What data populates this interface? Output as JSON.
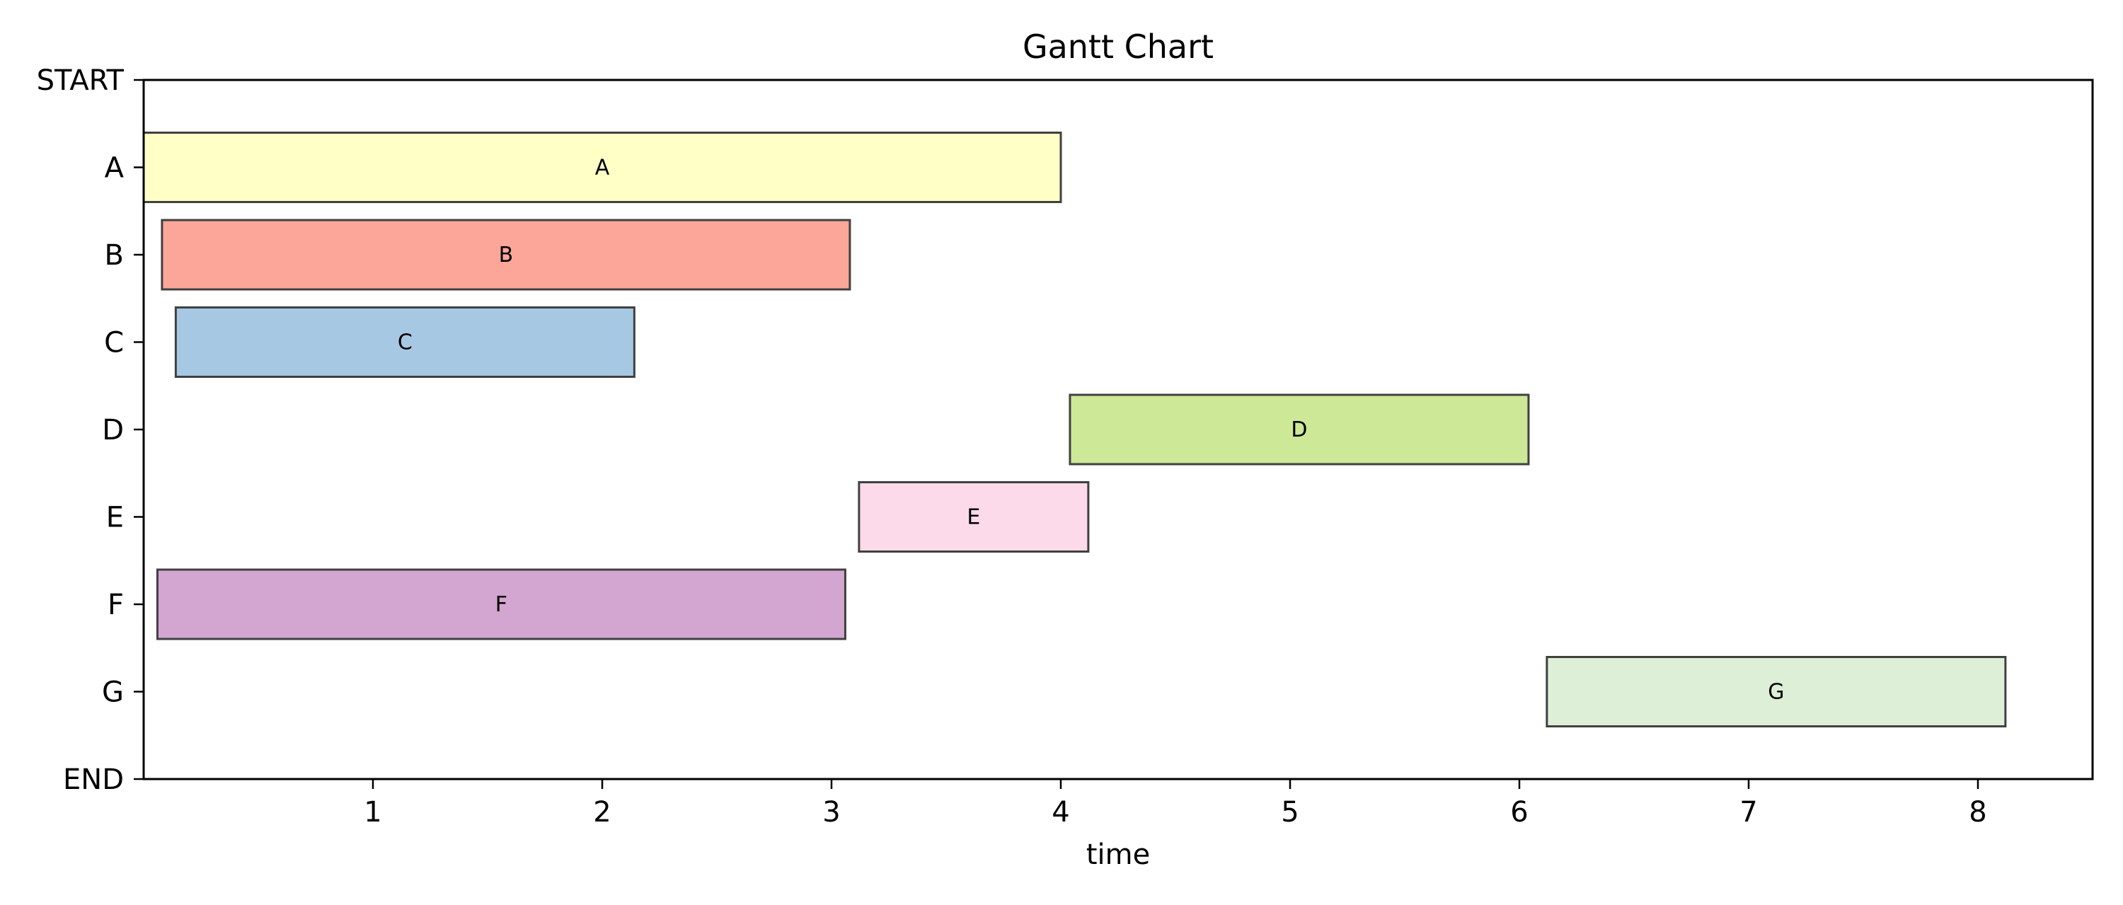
{
  "chart_data": {
    "type": "gantt",
    "title": "Gantt Chart",
    "xlabel": "time",
    "ylabel": "",
    "xlim": [
      0,
      8.5
    ],
    "x_ticks": [
      1,
      2,
      3,
      4,
      5,
      6,
      7,
      8
    ],
    "y_categories": [
      "START",
      "A",
      "B",
      "C",
      "D",
      "E",
      "F",
      "G",
      "END"
    ],
    "grid": false,
    "legend": "none",
    "tasks": [
      {
        "name": "A",
        "start": 0.0,
        "end": 4.0,
        "color": "#ffffc6"
      },
      {
        "name": "B",
        "start": 0.08,
        "end": 3.08,
        "color": "#fca69a"
      },
      {
        "name": "C",
        "start": 0.14,
        "end": 2.14,
        "color": "#a7c8e2"
      },
      {
        "name": "D",
        "start": 4.04,
        "end": 6.04,
        "color": "#cde897"
      },
      {
        "name": "E",
        "start": 3.12,
        "end": 4.12,
        "color": "#fcdaea"
      },
      {
        "name": "F",
        "start": 0.06,
        "end": 3.06,
        "color": "#d2a6d0"
      },
      {
        "name": "G",
        "start": 6.12,
        "end": 8.12,
        "color": "#ddefd6"
      }
    ],
    "bar_edge_color": "#404040",
    "axis_color": "#000000"
  }
}
